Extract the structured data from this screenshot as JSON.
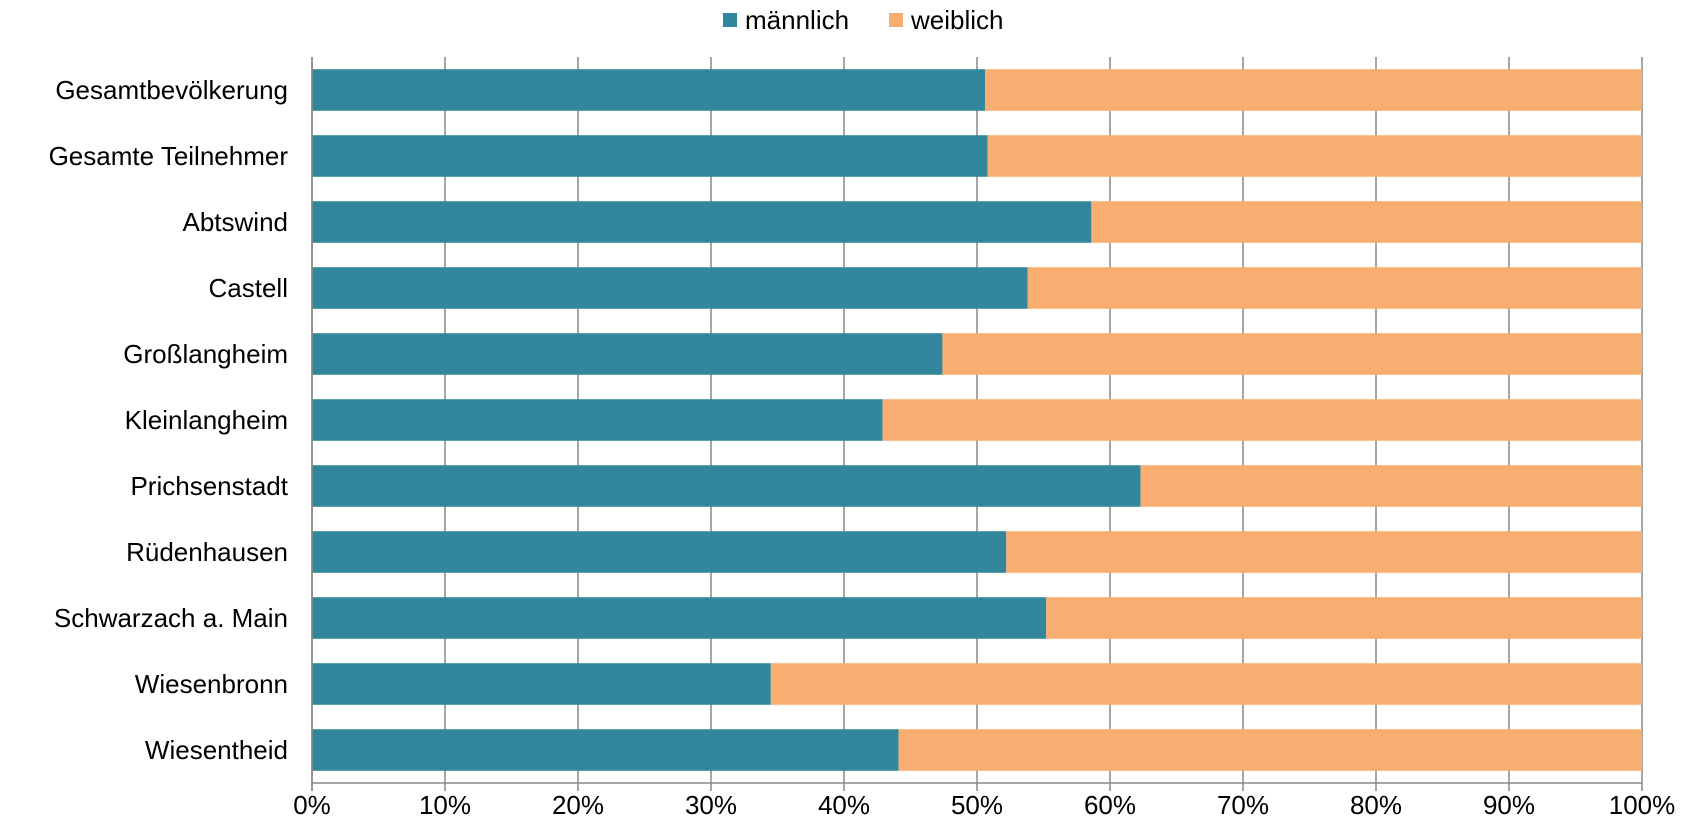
{
  "chart_data": {
    "type": "bar",
    "orientation": "horizontal",
    "stacked": "percent",
    "categories": [
      "Gesamtbevölkerung",
      "Gesamte Teilnehmer",
      "Abtswind ",
      "Castell",
      "Großlangheim",
      "Kleinlangheim",
      "Prichsenstadt",
      "Rüdenhausen",
      "Schwarzach a. Main",
      "Wiesenbronn",
      "Wiesentheid"
    ],
    "series": [
      {
        "name": "männlich",
        "color": "#33879C",
        "values": [
          50.6,
          50.8,
          58.6,
          53.8,
          47.4,
          42.9,
          62.3,
          52.2,
          55.2,
          34.5,
          44.1
        ]
      },
      {
        "name": "weiblich",
        "color": "#F8AE70",
        "values": [
          49.4,
          49.2,
          41.4,
          46.2,
          52.6,
          57.1,
          37.7,
          47.8,
          44.8,
          65.5,
          55.9
        ]
      }
    ],
    "x_ticks": [
      "0%",
      "10%",
      "20%",
      "30%",
      "40%",
      "50%",
      "60%",
      "70%",
      "80%",
      "90%",
      "100%"
    ],
    "xlim": [
      0,
      100
    ],
    "grid": true,
    "legend_position": "top-center"
  }
}
